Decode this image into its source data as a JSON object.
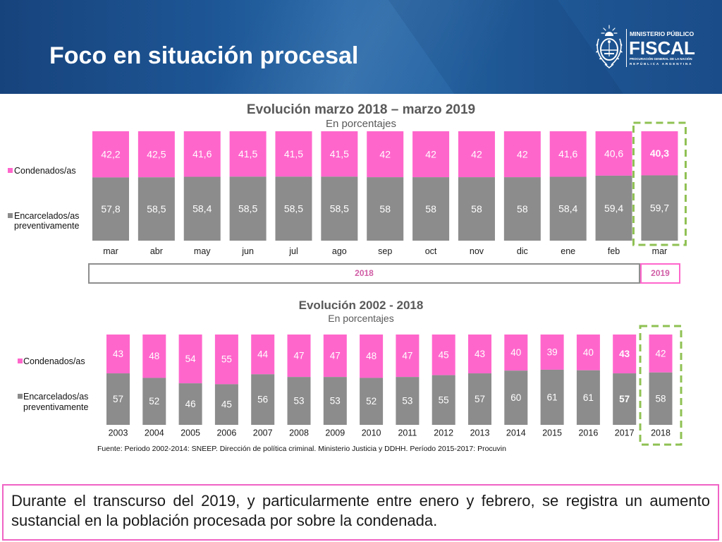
{
  "header": {
    "title": "Foco en situación procesal",
    "logo": {
      "emblem_icon": "coat-of-arms-icon",
      "line1": "MINISTERIO PÚBLICO",
      "line2": "FISCAL",
      "line3": "PROCURACIÓN GENERAL DE LA NACIÓN",
      "line4": "REPÚBLICA ARGENTINA"
    }
  },
  "colors": {
    "header_blue": "#1f5c9e",
    "chart_title_text": "#595959",
    "condenados_pink": "#ff66cc",
    "encarcelados_gray": "#8c8c8c",
    "highlight_green": "#8fc153",
    "note_border": "#f063c4"
  },
  "chart_data": [
    {
      "type": "bar",
      "stacked": true,
      "title": "Evolución marzo 2018 – marzo 2019",
      "subtitle": "En porcentajes",
      "categories": [
        "mar",
        "abr",
        "may",
        "jun",
        "jul",
        "ago",
        "sep",
        "oct",
        "nov",
        "dic",
        "ene",
        "feb",
        "mar"
      ],
      "series": [
        {
          "name": "Condenados/as",
          "color": "#ff66cc",
          "values": [
            42.2,
            42.5,
            41.6,
            41.5,
            41.5,
            41.5,
            42,
            42,
            42,
            42,
            41.6,
            40.6,
            40.3
          ]
        },
        {
          "name": "Encarcelados/as preventivamente",
          "color": "#8c8c8c",
          "values": [
            57.8,
            58.5,
            58.4,
            58.5,
            58.5,
            58.5,
            58,
            58,
            58,
            58,
            58.4,
            59.4,
            59.7
          ]
        }
      ],
      "bold_labels": [
        {
          "series": 0,
          "index": 12
        }
      ],
      "bold_label_color": "#ffffff",
      "highlight_index": 12,
      "legend": "left",
      "grid": false
    },
    {
      "type": "bar",
      "stacked": true,
      "title": "Evolución 2002 - 2018",
      "subtitle": "En porcentajes",
      "categories": [
        "2003",
        "2004",
        "2005",
        "2006",
        "2007",
        "2008",
        "2009",
        "2010",
        "2011",
        "2012",
        "2013",
        "2014",
        "2015",
        "2016",
        "2017",
        "2018"
      ],
      "series": [
        {
          "name": "Condenados/as",
          "color": "#ff66cc",
          "values": [
            43,
            48,
            54,
            55,
            44,
            47,
            47,
            48,
            47,
            45,
            43,
            40,
            39,
            40,
            43,
            42
          ]
        },
        {
          "name": "Encarcelados/as preventivamente",
          "color": "#8c8c8c",
          "values": [
            57,
            52,
            46,
            45,
            56,
            53,
            53,
            52,
            53,
            55,
            57,
            60,
            61,
            61,
            57,
            58
          ]
        }
      ],
      "bold_labels": [
        {
          "series": 0,
          "index": 14
        },
        {
          "series": 1,
          "index": 14
        }
      ],
      "bold_label_color": "#262626",
      "highlight_index": 15,
      "legend": "left",
      "grid": false
    }
  ],
  "period_bar": {
    "year_2018": "2018",
    "year_2019": "2019"
  },
  "source": "Fuente: Periodo 2002-2014: SNEEP. Dirección de política criminal. Ministerio Justicia y DDHH. Período 2015-2017: Procuvin",
  "note": "Durante el transcurso del 2019, y particularmente entre enero y febrero, se registra un aumento sustancial en la población procesada por sobre la condenada."
}
